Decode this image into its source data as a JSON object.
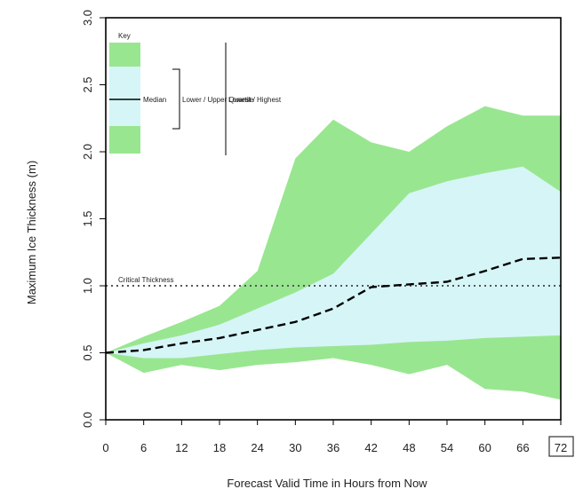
{
  "chart_data": {
    "type": "area",
    "title": "",
    "xlabel": "Forecast Valid Time in Hours from Now",
    "ylabel": "Maximum Ice Thickness (m)",
    "x": [
      0,
      6,
      12,
      18,
      24,
      30,
      36,
      42,
      48,
      54,
      60,
      66,
      72
    ],
    "x_tick_labels": [
      "0",
      "6",
      "12",
      "18",
      "24",
      "30",
      "36",
      "42",
      "48",
      "54",
      "60",
      "66",
      "72"
    ],
    "highlighted_x_tick": "72",
    "y_ticks": [
      0.0,
      0.5,
      1.0,
      1.5,
      2.0,
      2.5,
      3.0
    ],
    "y_tick_labels": [
      "0.0",
      "0.5",
      "1.0",
      "1.5",
      "2.0",
      "2.5",
      "3.0"
    ],
    "xlim": [
      0,
      72
    ],
    "ylim": [
      0,
      3.0
    ],
    "grid": false,
    "legend_position": "top-left",
    "legend": {
      "title": "Key",
      "median_label": "Median",
      "inner_range_label": "Lower / Upper Quartile",
      "outer_range_label": "Lowest / Highest"
    },
    "series": [
      {
        "name": "Median",
        "style": "dashed",
        "color": "#000000",
        "values": [
          0.5,
          0.52,
          0.57,
          0.61,
          0.67,
          0.73,
          0.83,
          0.99,
          1.01,
          1.03,
          1.11,
          1.2,
          1.21
        ]
      },
      {
        "name": "Lower / Upper Quartile",
        "style": "band",
        "color": "#d6f5f7",
        "lower": [
          0.5,
          0.46,
          0.46,
          0.49,
          0.52,
          0.54,
          0.55,
          0.56,
          0.58,
          0.59,
          0.61,
          0.62,
          0.63
        ],
        "upper": [
          0.5,
          0.57,
          0.63,
          0.71,
          0.83,
          0.95,
          1.09,
          1.39,
          1.69,
          1.78,
          1.84,
          1.89,
          1.7
        ]
      },
      {
        "name": "Lowest / Highest",
        "style": "band",
        "color": "#99e690",
        "lower": [
          0.5,
          0.35,
          0.41,
          0.37,
          0.41,
          0.43,
          0.46,
          0.41,
          0.34,
          0.41,
          0.23,
          0.21,
          0.15
        ],
        "upper": [
          0.5,
          0.62,
          0.73,
          0.85,
          1.11,
          1.95,
          2.24,
          2.07,
          2.0,
          2.19,
          2.34,
          2.27,
          2.27
        ]
      }
    ],
    "reference_line": {
      "label": "Critical Thickness",
      "value": 1.0,
      "style": "dotted",
      "color": "#555555"
    }
  }
}
